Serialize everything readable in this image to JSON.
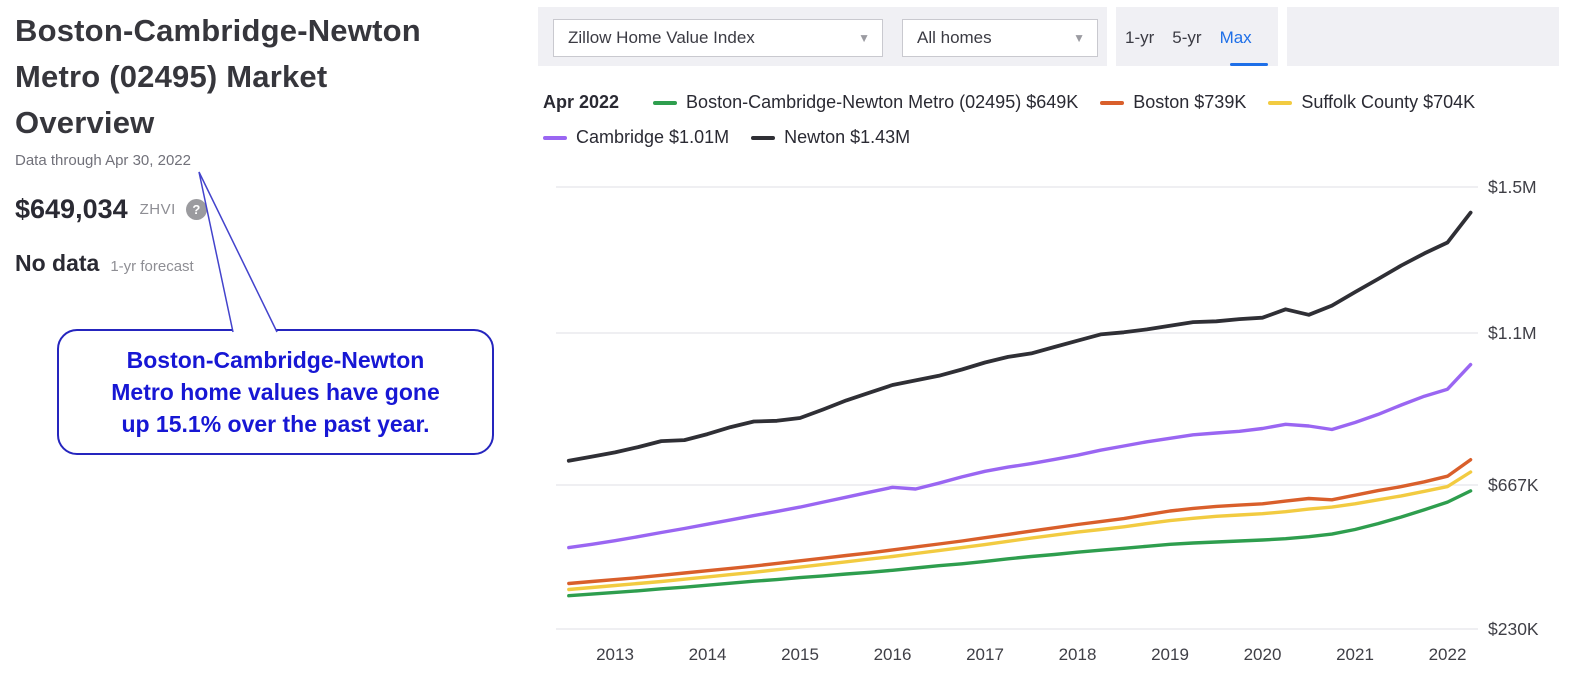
{
  "left_panel": {
    "title": "Boston-Cambridge-Newton\nMetro (02495) Market\nOverview",
    "data_through": "Data through Apr 30, 2022",
    "zhvi_value": "$649,034",
    "zhvi_label": "ZHVI",
    "help_icon": "?",
    "forecast_value": "No data",
    "forecast_label": "1-yr forecast",
    "callout_text": "Boston-Cambridge-Newton\nMetro home values have gone\nup 15.1% over the past year.",
    "callout_border_color": "#2525be",
    "callout_text_color": "#1717d4"
  },
  "toolbar": {
    "metric_dropdown": {
      "value": "Zillow Home Value Index"
    },
    "home_type_dropdown": {
      "value": "All homes"
    },
    "range_tabs": [
      {
        "label": "1-yr",
        "active": false
      },
      {
        "label": "5-yr",
        "active": false
      },
      {
        "label": "Max",
        "active": true
      }
    ],
    "active_tab_color": "#1e6fe8"
  },
  "legend": {
    "as_of": "Apr 2022",
    "items": [
      {
        "row": 1,
        "label": "Boston-Cambridge-Newton Metro (02495) $649K",
        "color": "#2e9e4e"
      },
      {
        "row": 1,
        "label": "Boston $739K",
        "color": "#d95f2b"
      },
      {
        "row": 1,
        "label": "Suffolk County $704K",
        "color": "#f2cb41"
      },
      {
        "row": 2,
        "label": "Cambridge $1.01M",
        "color": "#9a66f2"
      },
      {
        "row": 2,
        "label": "Newton $1.43M",
        "color": "#2f2f35"
      }
    ]
  },
  "chart_data": {
    "type": "line",
    "unit": "USD thousands (home value)",
    "as_of": "Apr 2022",
    "x_start": 2012.5,
    "x_step": 0.25,
    "x_ticks": [
      "2013",
      "2014",
      "2015",
      "2016",
      "2017",
      "2018",
      "2019",
      "2020",
      "2021",
      "2022"
    ],
    "y_ticks": [
      {
        "label": "$1.5M",
        "value": 1500
      },
      {
        "label": "$1.1M",
        "value": 1100
      },
      {
        "label": "$667K",
        "value": 667
      },
      {
        "label": "$230K",
        "value": 230
      }
    ],
    "ylim": [
      230,
      1500
    ],
    "grid": true,
    "legend_position": "top",
    "series": [
      {
        "name": "Boston-Cambridge-Newton Metro (02495)",
        "end_label": "$649K",
        "color": "#2e9e4e",
        "values": [
          331,
          336,
          341,
          346,
          352,
          357,
          363,
          369,
          375,
          380,
          386,
          391,
          397,
          402,
          408,
          415,
          422,
          428,
          435,
          443,
          450,
          456,
          463,
          469,
          475,
          481,
          487,
          491,
          494,
          497,
          500,
          504,
          510,
          518,
          532,
          550,
          570,
          592,
          615,
          649
        ]
      },
      {
        "name": "Suffolk County",
        "end_label": "$704K",
        "color": "#f2cb41",
        "values": [
          350,
          356,
          362,
          368,
          374,
          381,
          388,
          395,
          402,
          410,
          418,
          426,
          434,
          442,
          450,
          459,
          468,
          477,
          486,
          496,
          506,
          515,
          524,
          532,
          540,
          550,
          559,
          566,
          572,
          576,
          580,
          586,
          594,
          600,
          610,
          622,
          634,
          648,
          662,
          704
        ]
      },
      {
        "name": "Boston",
        "end_label": "$739K",
        "color": "#d95f2b",
        "values": [
          368,
          374,
          380,
          386,
          393,
          400,
          407,
          414,
          421,
          429,
          437,
          445,
          453,
          461,
          470,
          479,
          488,
          497,
          507,
          517,
          527,
          537,
          547,
          556,
          565,
          577,
          588,
          596,
          602,
          606,
          610,
          618,
          626,
          622,
          636,
          650,
          662,
          676,
          692,
          739
        ]
      },
      {
        "name": "Cambridge",
        "end_label": "$1.01M",
        "color": "#9a66f2",
        "values": [
          477,
          487,
          498,
          510,
          523,
          535,
          548,
          561,
          574,
          587,
          600,
          615,
          630,
          645,
          660,
          655,
          672,
          690,
          706,
          718,
          728,
          740,
          752,
          766,
          778,
          790,
          800,
          810,
          815,
          820,
          828,
          840,
          835,
          825,
          845,
          868,
          895,
          920,
          940,
          1010
        ]
      },
      {
        "name": "Newton",
        "end_label": "$1.43M",
        "color": "#2f2f35",
        "values": [
          736,
          748,
          760,
          775,
          792,
          795,
          812,
          832,
          848,
          850,
          858,
          882,
          908,
          930,
          952,
          965,
          978,
          996,
          1016,
          1032,
          1042,
          1060,
          1078,
          1096,
          1102,
          1110,
          1120,
          1130,
          1132,
          1138,
          1142,
          1165,
          1150,
          1175,
          1212,
          1248,
          1285,
          1318,
          1348,
          1430
        ]
      }
    ]
  }
}
